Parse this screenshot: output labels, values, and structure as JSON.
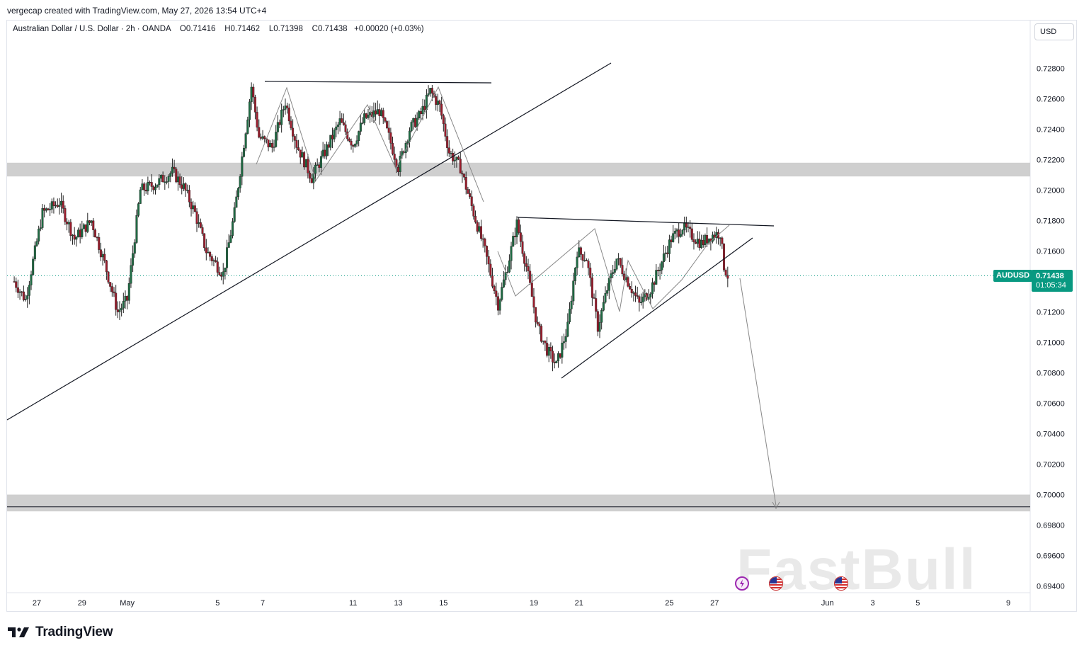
{
  "credit": "vergecap created with TradingView.com, May 27, 2026 13:54 UTC+4",
  "legend": {
    "pair": "Australian Dollar / U.S. Dollar",
    "interval": "2h",
    "broker": "OANDA",
    "open": "O0.71416",
    "high": "H0.71462",
    "low": "L0.71398",
    "close": "C0.71438",
    "change": "+0.00020 (+0.03%)"
  },
  "currency_button": "USD",
  "symbol_tag": "AUDUSD",
  "last_price": "0.71438",
  "countdown": "01:05:34",
  "brand": "TradingView",
  "watermark": "FastBull",
  "colors": {
    "up": "#089981",
    "down": "#f23645",
    "candle_up_body": "#1e6b43",
    "candle_down_body": "#9b1c2c",
    "zone": "#cfcfcf",
    "accent": "#089981"
  },
  "icons": [
    "lightning-event-icon",
    "us-flag-event-icon",
    "us-flag-event-icon"
  ],
  "chart_data": {
    "type": "candlestick",
    "title": "Australian Dollar / U.S. Dollar · 2h · OANDA",
    "ylim": [
      0.6932,
      0.7302
    ],
    "y_ticks": [
      "0.72800",
      "0.72600",
      "0.72400",
      "0.72200",
      "0.72000",
      "0.71800",
      "0.71600",
      "0.71200",
      "0.71000",
      "0.70800",
      "0.70600",
      "0.70400",
      "0.70200",
      "0.70000",
      "0.69800",
      "0.69600",
      "0.69400"
    ],
    "x_ticks": [
      "27",
      "29",
      "May",
      "5",
      "7",
      "11",
      "13",
      "15",
      "19",
      "21",
      "25",
      "27",
      "Jun",
      "3",
      "5",
      "9"
    ],
    "last_price": 0.71438,
    "price_path": [
      [
        "Apr 26 00:00",
        0.714
      ],
      [
        "Apr 26 12:00",
        0.7128
      ],
      [
        "Apr 27 06:00",
        0.7185
      ],
      [
        "Apr 28 00:00",
        0.7192
      ],
      [
        "Apr 28 16:00",
        0.7168
      ],
      [
        "Apr 29 10:00",
        0.718
      ],
      [
        "Apr 30 00:00",
        0.7152
      ],
      [
        "Apr 30 14:00",
        0.712
      ],
      [
        "May 1 00:00",
        0.7128
      ],
      [
        "May 1 14:00",
        0.72
      ],
      [
        "May 2 06:00",
        0.7204
      ],
      [
        "May 3 00:00",
        0.7212
      ],
      [
        "May 3 12:00",
        0.7202
      ],
      [
        "May 4 00:00",
        0.7185
      ],
      [
        "May 4 12:00",
        0.716
      ],
      [
        "May 5 06:00",
        0.7145
      ],
      [
        "May 5 18:00",
        0.7185
      ],
      [
        "May 6 06:00",
        0.724
      ],
      [
        "May 6 12:00",
        0.7268
      ],
      [
        "May 6 20:00",
        0.7235
      ],
      [
        "May 7 10:00",
        0.7228
      ],
      [
        "May 8 00:00",
        0.7258
      ],
      [
        "May 8 12:00",
        0.723
      ],
      [
        "May 9 04:00",
        0.7208
      ],
      [
        "May 9 18:00",
        0.7225
      ],
      [
        "May 10 10:00",
        0.7245
      ],
      [
        "May 11 00:00",
        0.723
      ],
      [
        "May 11 12:00",
        0.7247
      ],
      [
        "May 12 04:00",
        0.7252
      ],
      [
        "May 12 14:00",
        0.7235
      ],
      [
        "May 13 00:00",
        0.7215
      ],
      [
        "May 13 12:00",
        0.724
      ],
      [
        "May 14 00:00",
        0.725
      ],
      [
        "May 14 10:00",
        0.7265
      ],
      [
        "May 14 20:00",
        0.7255
      ],
      [
        "May 15 06:00",
        0.7225
      ],
      [
        "May 15 18:00",
        0.7215
      ],
      [
        "May 16 08:00",
        0.7185
      ],
      [
        "May 16 20:00",
        0.716
      ],
      [
        "May 17 10:00",
        0.7125
      ],
      [
        "May 17 20:00",
        0.715
      ],
      [
        "May 18 06:00",
        0.7178
      ],
      [
        "May 18 16:00",
        0.715
      ],
      [
        "May 19 04:00",
        0.711
      ],
      [
        "May 19 14:00",
        0.7095
      ],
      [
        "May 20 00:00",
        0.7085
      ],
      [
        "May 20 12:00",
        0.711
      ],
      [
        "May 20 22:00",
        0.716
      ],
      [
        "May 21 08:00",
        0.7155
      ],
      [
        "May 21 20:00",
        0.711
      ],
      [
        "May 22 06:00",
        0.7135
      ],
      [
        "May 22 16:00",
        0.7155
      ],
      [
        "May 23 04:00",
        0.714
      ],
      [
        "May 23 16:00",
        0.7125
      ],
      [
        "May 24 04:00",
        0.7135
      ],
      [
        "May 24 14:00",
        0.715
      ],
      [
        "May 25 02:00",
        0.7168
      ],
      [
        "May 25 14:00",
        0.7176
      ],
      [
        "May 26 00:00",
        0.717
      ],
      [
        "May 26 10:00",
        0.7165
      ],
      [
        "May 26 20:00",
        0.717
      ],
      [
        "May 27 06:00",
        0.7172
      ],
      [
        "May 27 10:00",
        0.715
      ],
      [
        "May 27 14:00",
        0.71438
      ]
    ],
    "zones": [
      {
        "from": 0.7209,
        "to": 0.7218
      },
      {
        "from": 0.6989,
        "to": 0.7
      }
    ],
    "horizontal_lines": [
      0.6992
    ]
  }
}
